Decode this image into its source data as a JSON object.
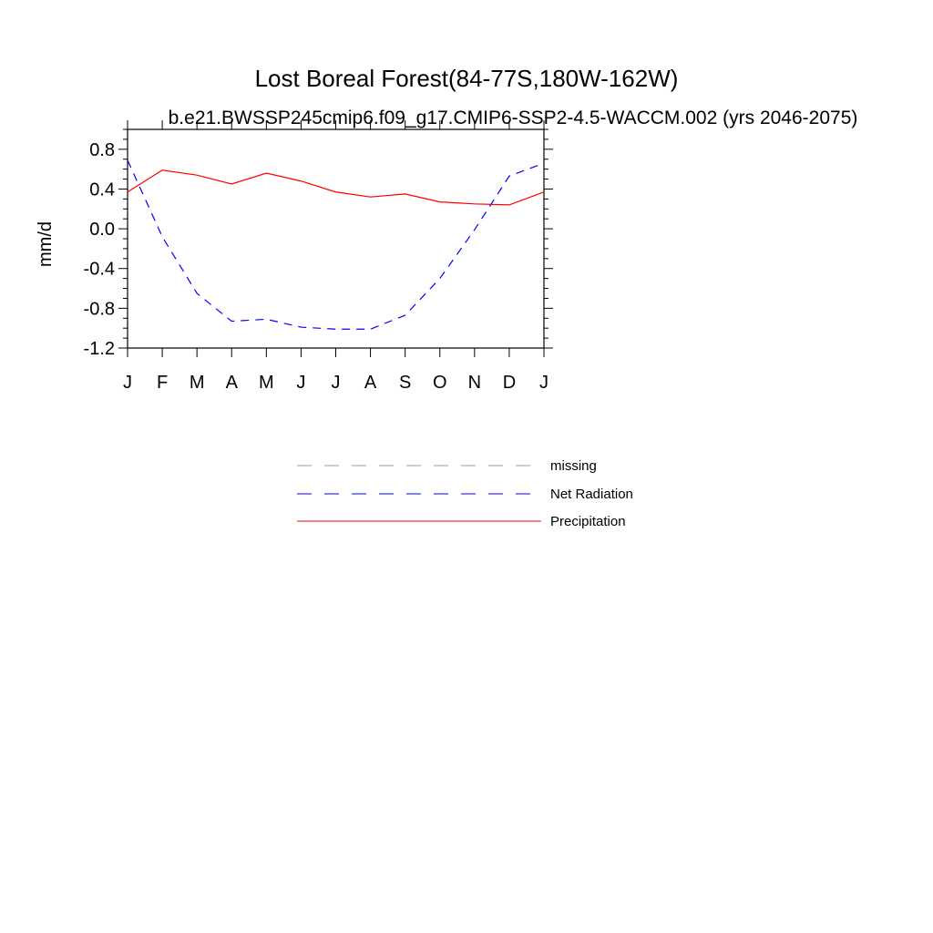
{
  "chart_data": {
    "type": "line",
    "title": "Lost Boreal Forest(84-77S,180W-162W)",
    "subtitle": "b.e21.BWSSP245cmip6.f09_g17.CMIP6-SSP2-4.5-WACCM.002 (yrs 2046-2075)",
    "xlabel": "",
    "ylabel": "mm/d",
    "categories": [
      "J",
      "F",
      "M",
      "A",
      "M",
      "J",
      "J",
      "A",
      "S",
      "O",
      "N",
      "D",
      "J"
    ],
    "ylim": [
      -1.2,
      1.0
    ],
    "yticks": [
      "0.8",
      "0.4",
      "0.0",
      "-0.4",
      "-0.8",
      "-1.2"
    ],
    "series": [
      {
        "name": "Net Radiation",
        "color": "#0000ff",
        "dash": "dashed",
        "values": [
          0.69,
          -0.08,
          -0.65,
          -0.93,
          -0.91,
          -0.99,
          -1.01,
          -1.01,
          -0.87,
          -0.5,
          -0.01,
          0.53,
          0.66
        ]
      },
      {
        "name": "Precipitation",
        "color": "#ff0000",
        "dash": "solid",
        "values": [
          0.37,
          0.59,
          0.54,
          0.45,
          0.56,
          0.48,
          0.37,
          0.32,
          0.35,
          0.27,
          0.25,
          0.24,
          0.37
        ]
      }
    ],
    "legend": {
      "position": "bottom-center",
      "entries": [
        {
          "label": "missing",
          "color": "#999999",
          "dash": "dashed"
        },
        {
          "label": "Net Radiation",
          "color": "#0000ff",
          "dash": "dashed"
        },
        {
          "label": "Precipitation",
          "color": "#ff0000",
          "dash": "solid"
        }
      ]
    },
    "grid": false
  }
}
